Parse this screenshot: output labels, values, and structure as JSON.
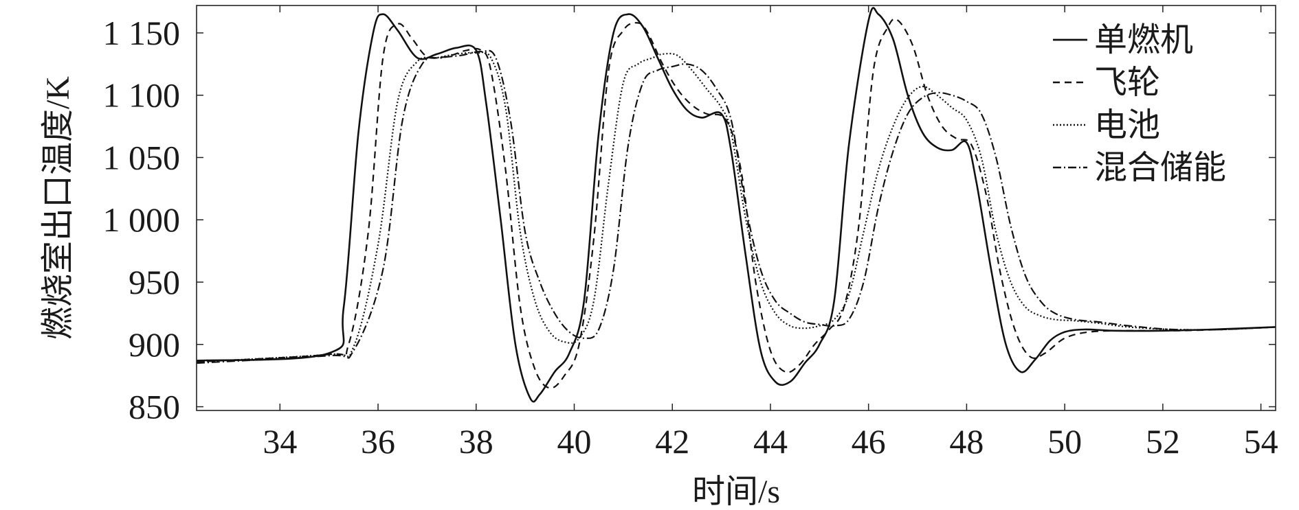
{
  "chart_data": {
    "type": "line",
    "xlabel": "时间/s",
    "ylabel": "燃烧室出口温度/K",
    "xlim": [
      32.3,
      54.3
    ],
    "ylim": [
      847,
      1172
    ],
    "x_ticks": [
      34,
      36,
      38,
      40,
      42,
      44,
      46,
      48,
      50,
      52,
      54
    ],
    "x_tick_labels": [
      "34",
      "36",
      "38",
      "40",
      "42",
      "44",
      "46",
      "48",
      "50",
      "52",
      "54"
    ],
    "y_ticks": [
      850,
      900,
      950,
      1000,
      1050,
      1100,
      1150
    ],
    "y_tick_labels": [
      "850",
      "900",
      "950",
      "1 000",
      "1 050",
      "1 100",
      "1 150"
    ],
    "grid": false,
    "legend_position": "top-right",
    "series": [
      {
        "name": "单燃机",
        "dash": "solid",
        "x": [
          32.3,
          35.0,
          35.3,
          35.6,
          35.9,
          36.1,
          36.4,
          36.8,
          37.2,
          37.6,
          38.0,
          38.2,
          38.5,
          38.8,
          39.1,
          39.3,
          39.6,
          39.9,
          40.2,
          40.5,
          40.8,
          41.1,
          41.4,
          41.7,
          42.0,
          42.3,
          42.6,
          43.0,
          43.2,
          43.5,
          43.8,
          44.1,
          44.4,
          44.7,
          45.0,
          45.3,
          45.6,
          46.0,
          46.2,
          46.5,
          46.8,
          47.1,
          47.4,
          47.7,
          48.0,
          48.2,
          48.5,
          48.8,
          49.1,
          49.4,
          49.7,
          50.0,
          50.4,
          51.0,
          52.0,
          53.0,
          54.3
        ],
        "y": [
          887,
          893,
          930,
          1070,
          1150,
          1165,
          1152,
          1130,
          1133,
          1138,
          1136,
          1095,
          1000,
          900,
          857,
          860,
          878,
          893,
          935,
          1070,
          1150,
          1165,
          1155,
          1130,
          1105,
          1088,
          1082,
          1085,
          1055,
          970,
          895,
          870,
          870,
          885,
          900,
          935,
          1060,
          1160,
          1165,
          1145,
          1100,
          1070,
          1058,
          1056,
          1062,
          1030,
          960,
          900,
          878,
          888,
          903,
          910,
          912,
          911,
          911,
          912,
          914
        ]
      },
      {
        "name": "飞轮",
        "dash": "10,7",
        "x": [
          32.3,
          35.0,
          35.4,
          35.8,
          36.1,
          36.4,
          36.7,
          37.0,
          37.4,
          37.8,
          38.1,
          38.3,
          38.6,
          38.9,
          39.2,
          39.5,
          39.8,
          40.1,
          40.4,
          40.7,
          41.0,
          41.3,
          41.5,
          41.8,
          42.1,
          42.4,
          42.7,
          43.1,
          43.4,
          43.7,
          44.0,
          44.3,
          44.6,
          44.9,
          45.2,
          45.5,
          45.8,
          46.1,
          46.4,
          46.6,
          46.9,
          47.2,
          47.5,
          47.8,
          48.1,
          48.4,
          48.7,
          49.0,
          49.3,
          49.6,
          50.0,
          50.5,
          51.2,
          52.2,
          53.2,
          54.3
        ],
        "y": [
          886,
          892,
          900,
          990,
          1130,
          1157,
          1145,
          1131,
          1131,
          1136,
          1136,
          1120,
          1040,
          930,
          880,
          865,
          875,
          900,
          985,
          1120,
          1152,
          1158,
          1150,
          1125,
          1105,
          1092,
          1085,
          1080,
          1040,
          950,
          895,
          878,
          884,
          900,
          912,
          930,
          995,
          1120,
          1155,
          1160,
          1140,
          1100,
          1075,
          1065,
          1060,
          1020,
          955,
          910,
          890,
          893,
          905,
          910,
          911,
          911,
          912,
          914
        ]
      },
      {
        "name": "电池",
        "dash": "2,3",
        "x": [
          32.3,
          35.0,
          35.5,
          36.0,
          36.4,
          36.8,
          37.2,
          37.6,
          38.0,
          38.3,
          38.6,
          38.9,
          39.2,
          39.5,
          39.8,
          40.1,
          40.4,
          40.7,
          41.0,
          41.3,
          41.6,
          41.8,
          42.1,
          42.4,
          42.7,
          43.0,
          43.2,
          43.5,
          43.8,
          44.1,
          44.4,
          44.7,
          45.0,
          45.3,
          45.6,
          45.9,
          46.2,
          46.5,
          46.8,
          47.1,
          47.4,
          47.7,
          48.0,
          48.3,
          48.6,
          48.9,
          49.2,
          49.5,
          49.8,
          50.2,
          50.7,
          51.3,
          52.2,
          53.2,
          54.3
        ],
        "y": [
          886,
          892,
          898,
          980,
          1095,
          1127,
          1130,
          1133,
          1134,
          1130,
          1090,
          990,
          935,
          910,
          902,
          905,
          935,
          1030,
          1110,
          1125,
          1130,
          1133,
          1132,
          1120,
          1105,
          1090,
          1070,
          1000,
          950,
          925,
          915,
          913,
          915,
          920,
          940,
          990,
          1040,
          1075,
          1098,
          1107,
          1100,
          1090,
          1080,
          1050,
          990,
          950,
          930,
          923,
          920,
          919,
          917,
          914,
          912,
          912,
          914
        ]
      },
      {
        "name": "混合储能",
        "dash": "12,4,2,4",
        "x": [
          32.3,
          35.0,
          35.5,
          36.1,
          36.5,
          36.9,
          37.3,
          37.7,
          38.1,
          38.4,
          38.7,
          39.0,
          39.3,
          39.6,
          39.9,
          40.2,
          40.5,
          40.8,
          41.1,
          41.4,
          41.7,
          42.0,
          42.3,
          42.6,
          42.9,
          43.2,
          43.5,
          43.8,
          44.1,
          44.4,
          44.7,
          45.0,
          45.3,
          45.6,
          45.9,
          46.2,
          46.5,
          46.8,
          47.1,
          47.4,
          47.7,
          48.0,
          48.3,
          48.6,
          48.9,
          49.2,
          49.5,
          49.8,
          50.2,
          50.7,
          51.3,
          52.2,
          53.2,
          54.3
        ],
        "y": [
          885,
          891,
          895,
          960,
          1080,
          1125,
          1130,
          1132,
          1135,
          1130,
          1080,
          990,
          950,
          925,
          910,
          905,
          912,
          960,
          1060,
          1110,
          1120,
          1123,
          1125,
          1120,
          1105,
          1080,
          1010,
          960,
          935,
          925,
          918,
          916,
          915,
          920,
          950,
          1010,
          1055,
          1085,
          1098,
          1102,
          1100,
          1095,
          1085,
          1050,
          995,
          955,
          935,
          925,
          920,
          918,
          915,
          912,
          912,
          914
        ]
      }
    ]
  }
}
